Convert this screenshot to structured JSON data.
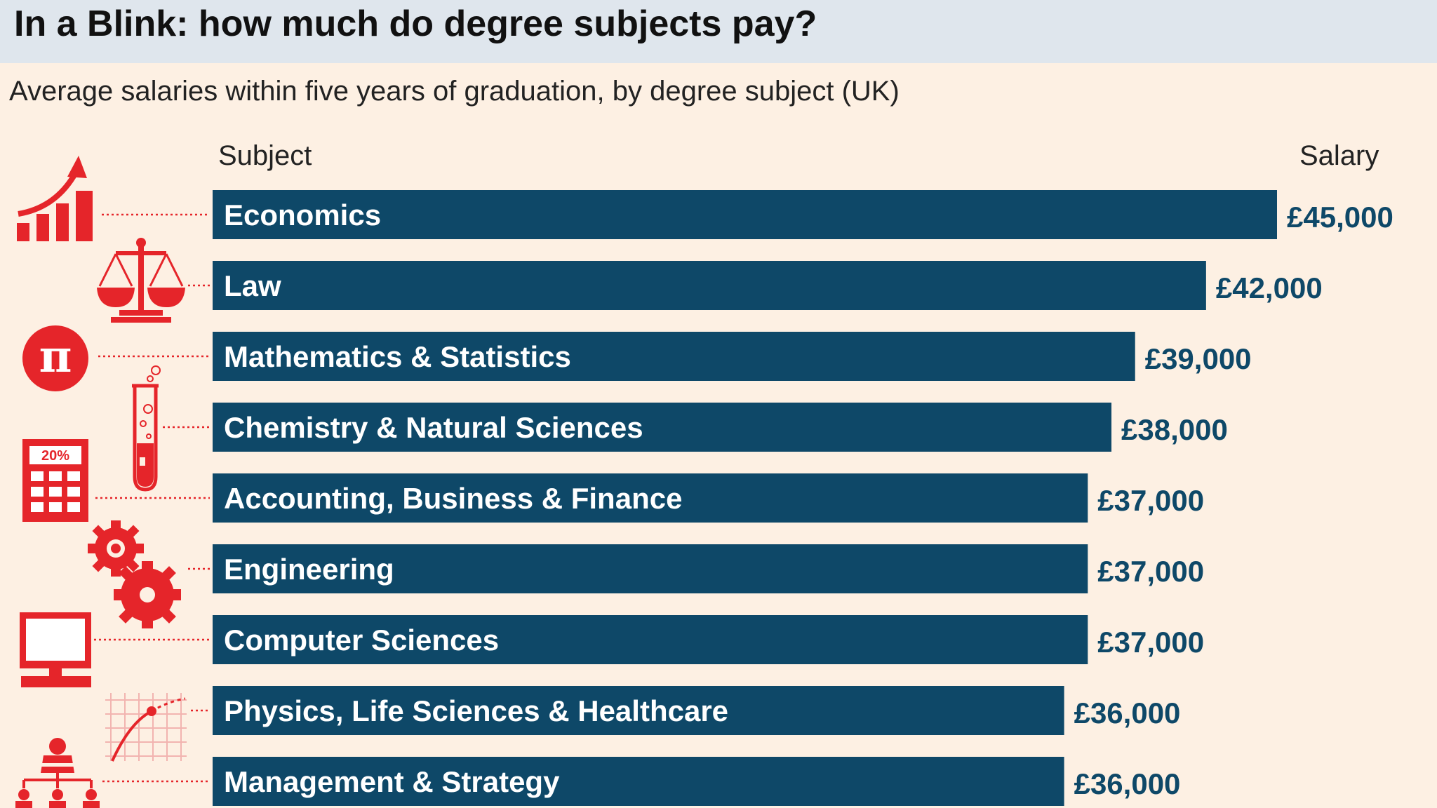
{
  "title": "In a Blink: how much do degree subjects pay?",
  "subtitle": "Average salaries within five years of graduation, by degree subject (UK)",
  "column_headers": {
    "subject": "Subject",
    "salary": "Salary"
  },
  "colors": {
    "bar": "#0e4868",
    "icon": "#e5252a",
    "header_bg": "#dfe6ed",
    "background": "#fdf0e3"
  },
  "icon_labels": {
    "calculator": "20%"
  },
  "chart_data": {
    "type": "bar",
    "orientation": "horizontal",
    "title": "In a Blink: how much do degree subjects pay?",
    "subtitle": "Average salaries within five years of graduation, by degree subject (UK)",
    "categories": [
      "Economics",
      "Law",
      "Mathematics & Statistics",
      "Chemistry & Natural Sciences",
      "Accounting, Business & Finance",
      "Engineering",
      "Computer Sciences",
      "Physics, Life Sciences & Healthcare",
      "Management & Strategy"
    ],
    "values": [
      45000,
      42000,
      39000,
      38000,
      37000,
      37000,
      37000,
      36000,
      36000
    ],
    "value_labels": [
      "£45,000",
      "£42,000",
      "£39,000",
      "£38,000",
      "£37,000",
      "£37,000",
      "£37,000",
      "£36,000",
      "£36,000"
    ],
    "icons": [
      "rising-chart-icon",
      "scales-icon",
      "pi-icon",
      "test-tube-icon",
      "calculator-icon",
      "gears-icon",
      "computer-icon",
      "graph-paper-icon",
      "org-chart-icon"
    ],
    "xlim": [
      0,
      45000
    ],
    "grid": false,
    "legend": "none"
  }
}
